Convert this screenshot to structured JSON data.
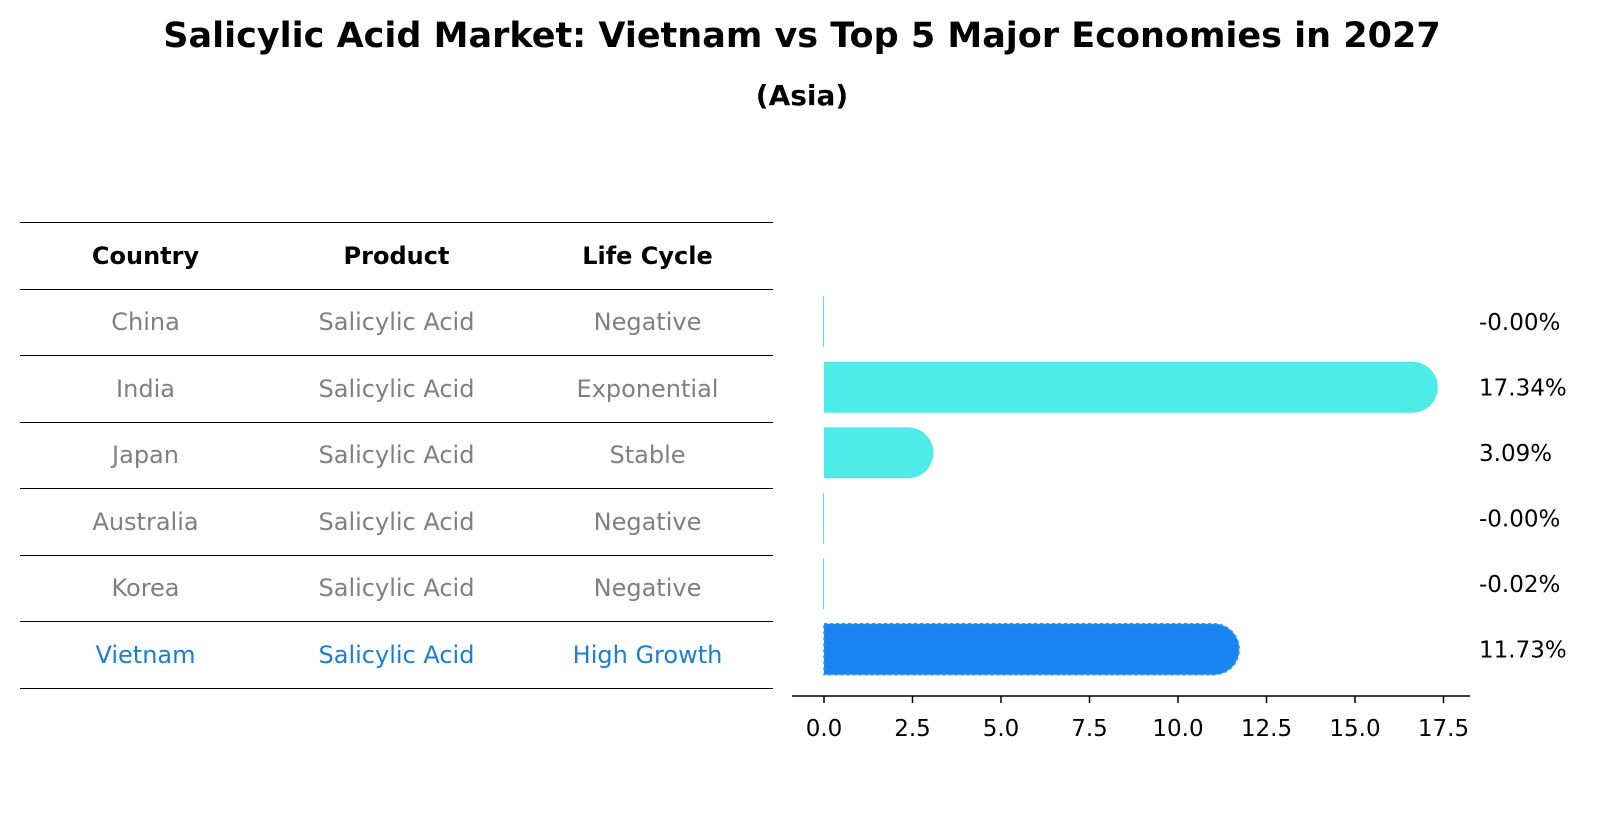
{
  "title": "Salicylic Acid Market: Vietnam vs Top 5 Major Economies in 2027",
  "subtitle": "(Asia)",
  "table": {
    "headers": [
      "Country",
      "Product",
      "Life Cycle"
    ],
    "rows": [
      {
        "country": "China",
        "product": "Salicylic Acid",
        "life_cycle": "Negative"
      },
      {
        "country": "India",
        "product": "Salicylic Acid",
        "life_cycle": "Exponential"
      },
      {
        "country": "Japan",
        "product": "Salicylic Acid",
        "life_cycle": "Stable"
      },
      {
        "country": "Australia",
        "product": "Salicylic Acid",
        "life_cycle": "Negative"
      },
      {
        "country": "Korea",
        "product": "Salicylic Acid",
        "life_cycle": "Negative"
      },
      {
        "country": "Vietnam",
        "product": "Salicylic Acid",
        "life_cycle": "High Growth"
      }
    ]
  },
  "colors": {
    "bar": "#4dece8",
    "highlight_bar": "#1a85f2",
    "highlight_text": "#1a7fd4",
    "muted_text": "#808080"
  },
  "chart_data": {
    "type": "bar",
    "orientation": "horizontal",
    "categories": [
      "China",
      "India",
      "Japan",
      "Australia",
      "Korea",
      "Vietnam"
    ],
    "values": [
      -0.0,
      17.34,
      3.09,
      -0.0,
      -0.02,
      11.73
    ],
    "value_labels": [
      "-0.00%",
      "17.34%",
      "3.09%",
      "-0.00%",
      "-0.02%",
      "11.73%"
    ],
    "highlight": "Vietnam",
    "xlim": [
      -0.9,
      18.3
    ],
    "xticks": [
      0.0,
      2.5,
      5.0,
      7.5,
      10.0,
      12.5,
      15.0,
      17.5
    ],
    "xtick_labels": [
      "0.0",
      "2.5",
      "5.0",
      "7.5",
      "10.0",
      "12.5",
      "15.0",
      "17.5"
    ],
    "grid": false
  }
}
